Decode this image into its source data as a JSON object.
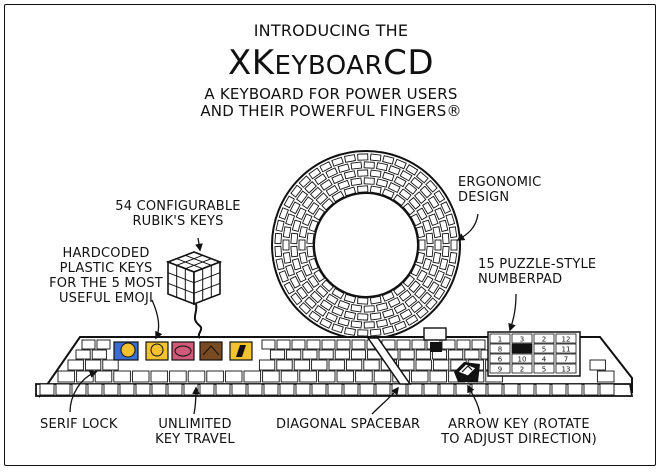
{
  "header": {
    "intro": "Introducing the",
    "title_x": "X",
    "title_k": "K",
    "title_rest": "eyboar",
    "title_cd": "CD",
    "tagline_1": "A keyboard for power users",
    "tagline_2": "and their powerful fingers®"
  },
  "labels": {
    "rubik": [
      "54 configurable",
      "Rubik's keys"
    ],
    "emoji": [
      "Hardcoded",
      "plastic keys",
      "for the 5 most",
      "useful emoji"
    ],
    "ergonomic": [
      "Ergonomic",
      "design"
    ],
    "numberpad": [
      "15 puzzle-style",
      "numberpad"
    ],
    "serif_lock": "Serif lock",
    "key_travel": [
      "Unlimited",
      "key travel"
    ],
    "spacebar": "Diagonal spacebar",
    "arrow_key": [
      "Arrow key (rotate",
      "to adjust direction)"
    ]
  },
  "puzzle_numbers": [
    "1",
    "3",
    "2",
    "12",
    "8",
    "5",
    "11",
    "6",
    "10",
    "4",
    "7",
    "9",
    "2",
    "5",
    "13",
    "14"
  ],
  "colors": {
    "ink": "#111111",
    "emoji_yellow": "#f2c230",
    "emoji_blue": "#3a6fd0",
    "emoji_pink": "#d05a7a",
    "emoji_brown": "#7a4a22"
  }
}
